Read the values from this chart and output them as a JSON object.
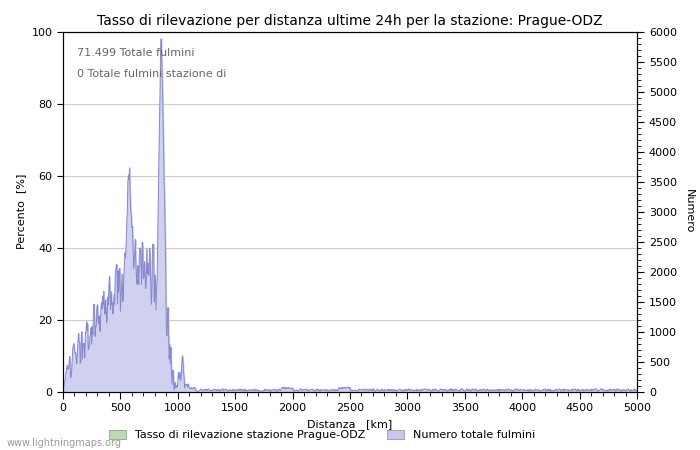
{
  "title": "Tasso di rilevazione per distanza ultime 24h per la stazione: Prague-ODZ",
  "xlabel": "Distanza   [km]",
  "ylabel_left": "Percento  [%]",
  "ylabel_right": "Numero",
  "annotation_line1": "71.499 Totale fulmini",
  "annotation_line2": "0 Totale fulmini stazione di",
  "legend_label1": "Tasso di rilevazione stazione Prague-ODZ",
  "legend_label2": "Numero totale fulmini",
  "legend_color1": "#b8ddb0",
  "legend_color2": "#c8c8ee",
  "watermark": "www.lightningmaps.org",
  "xlim": [
    0,
    5000
  ],
  "ylim_left": [
    0,
    100
  ],
  "ylim_right": [
    0,
    6000
  ],
  "xticks": [
    0,
    500,
    1000,
    1500,
    2000,
    2500,
    3000,
    3500,
    4000,
    4500,
    5000
  ],
  "yticks_left": [
    0,
    20,
    40,
    60,
    80,
    100
  ],
  "yticks_right": [
    0,
    500,
    1000,
    1500,
    2000,
    2500,
    3000,
    3500,
    4000,
    4500,
    5000,
    5500,
    6000
  ],
  "line_color": "#8888cc",
  "fill_color": "#d0d0f0",
  "bg_color": "#ffffff",
  "grid_color": "#cccccc",
  "title_fontsize": 10,
  "label_fontsize": 8,
  "tick_fontsize": 8,
  "annotation_fontsize": 8,
  "watermark_fontsize": 7
}
